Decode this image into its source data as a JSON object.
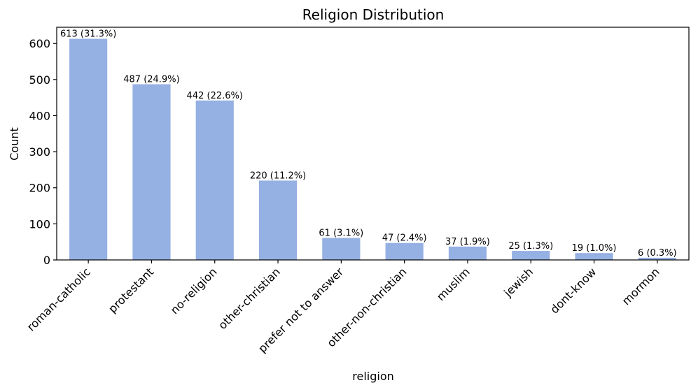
{
  "chart_data": {
    "type": "bar",
    "title": "Religion Distribution",
    "xlabel": "religion",
    "ylabel": "Count",
    "categories": [
      "roman-catholic",
      "protestant",
      "no-religion",
      "other-christian",
      "prefer not to answer",
      "other-non-christian",
      "muslim",
      "jewish",
      "dont-know",
      "mormon"
    ],
    "values": [
      613,
      487,
      442,
      220,
      61,
      47,
      37,
      25,
      19,
      6
    ],
    "data_labels": [
      "613 (31.3%)",
      "487 (24.9%)",
      "442 (22.6%)",
      "220 (11.2%)",
      "61 (3.1%)",
      "47 (2.4%)",
      "37 (1.9%)",
      "25 (1.3%)",
      "19 (1.0%)",
      "6 (0.3%)"
    ],
    "yticks": [
      0,
      100,
      200,
      300,
      400,
      500,
      600
    ],
    "ylim": [
      0,
      645
    ],
    "bar_color": "#95b0e3",
    "grid": false,
    "x_tick_rotation": "45 degrees"
  }
}
